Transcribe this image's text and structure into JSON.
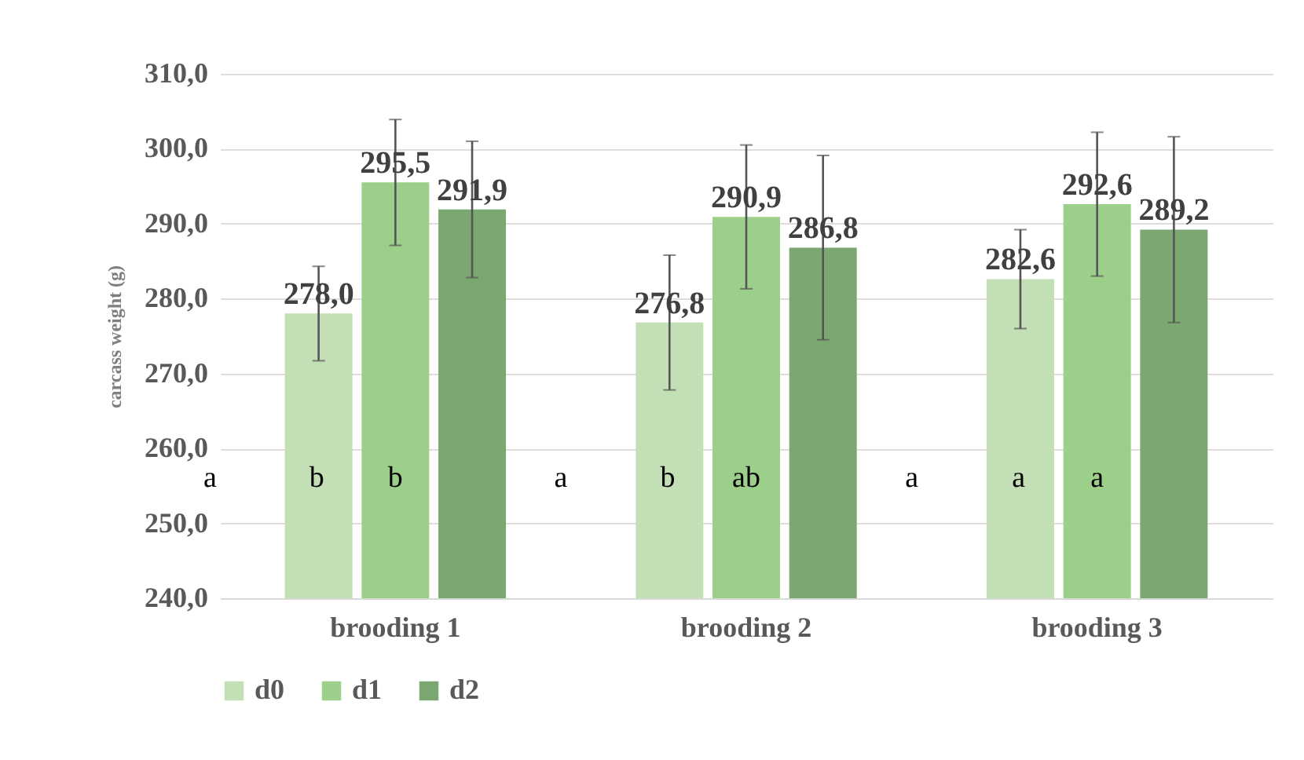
{
  "chart_data": {
    "type": "bar",
    "ylabel": "carcass weight (g)",
    "categories": [
      "brooding 1",
      "brooding 2",
      "brooding 3"
    ],
    "series": [
      {
        "name": "d0",
        "color": "#c3dfb5",
        "values": [
          278.0,
          276.8,
          282.6
        ],
        "errors": [
          6.3,
          9.0,
          6.6
        ],
        "value_labels": [
          "278,0",
          "276,8",
          "282,6"
        ]
      },
      {
        "name": "d1",
        "color": "#9ccf8a",
        "values": [
          295.5,
          290.9,
          292.6
        ],
        "errors": [
          8.4,
          9.6,
          9.6
        ],
        "value_labels": [
          "295,5",
          "290,9",
          "292,6"
        ]
      },
      {
        "name": "d2",
        "color": "#7aa870",
        "values": [
          291.9,
          286.8,
          289.2
        ],
        "errors": [
          9.1,
          12.3,
          12.4
        ],
        "value_labels": [
          "291,9",
          "286,8",
          "289,2"
        ]
      }
    ],
    "ylim": [
      240,
      310
    ],
    "yticks": [
      {
        "value": 240,
        "label": "240,0"
      },
      {
        "value": 250,
        "label": "250,0"
      },
      {
        "value": 260,
        "label": "260,0"
      },
      {
        "value": 270,
        "label": "270,0"
      },
      {
        "value": 280,
        "label": "280,0"
      },
      {
        "value": 290,
        "label": "290,0"
      },
      {
        "value": 300,
        "label": "300,0"
      },
      {
        "value": 310,
        "label": "310,0"
      }
    ],
    "grid": "y",
    "legend": "bottom",
    "annotations": [
      "a",
      "b",
      "b",
      "a",
      "b",
      "ab",
      "a",
      "a",
      "a"
    ]
  }
}
